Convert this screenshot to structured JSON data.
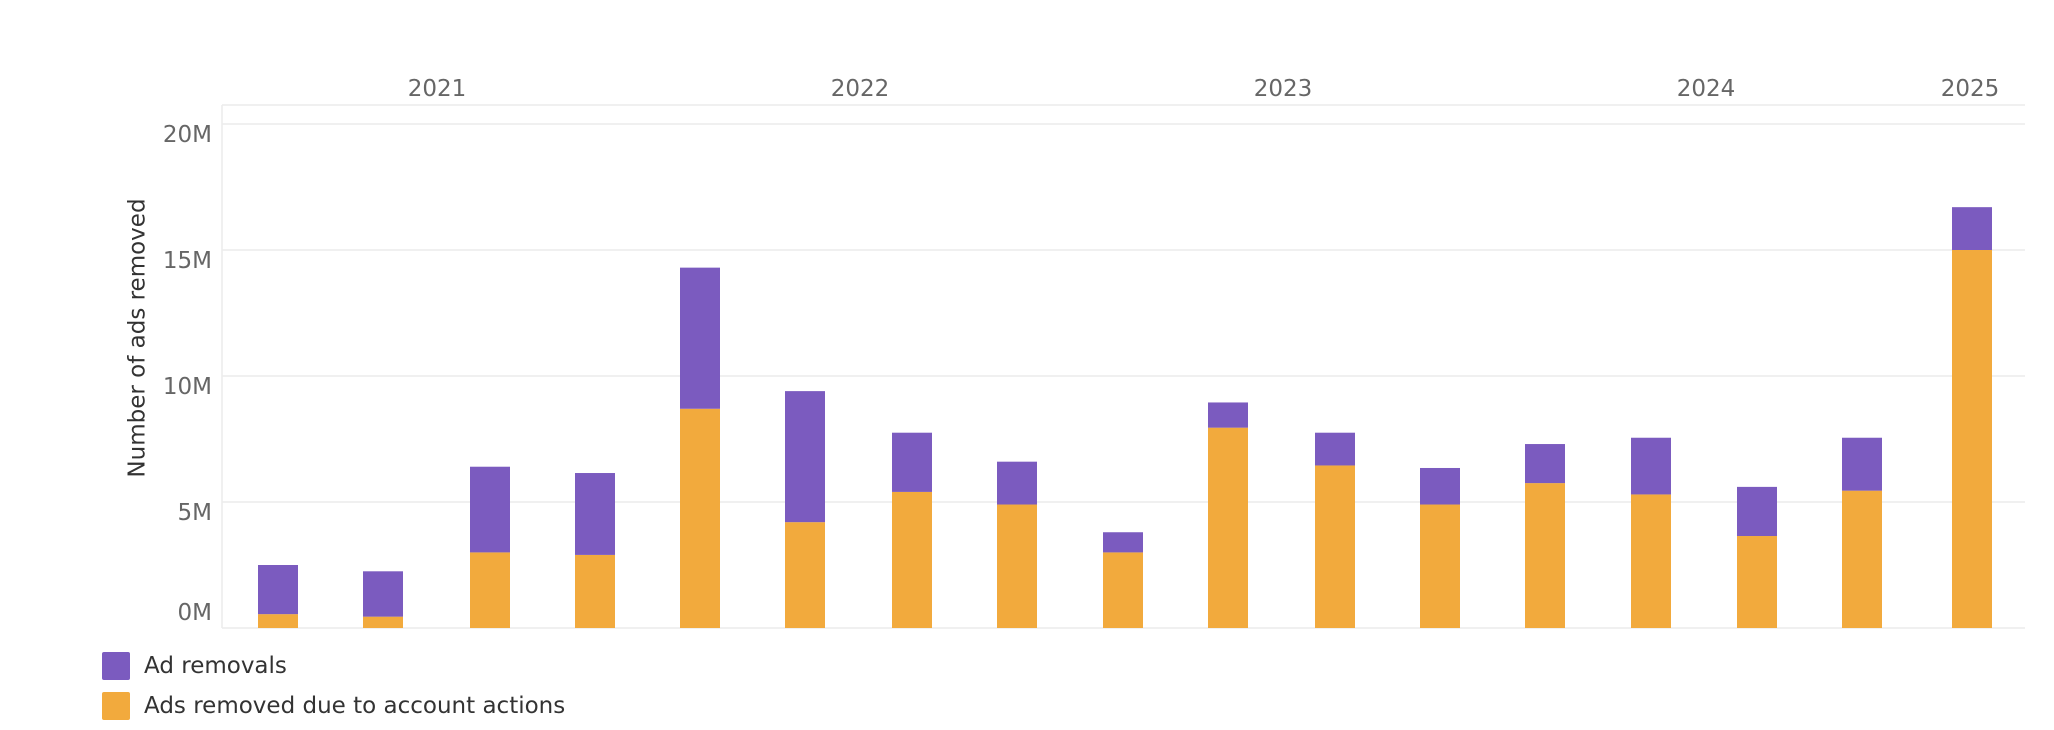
{
  "chart_data": {
    "type": "bar",
    "stacked": true,
    "title": "",
    "xlabel": "",
    "ylabel": "Number of ads removed",
    "ylim": [
      0,
      20000000
    ],
    "yticks": [
      {
        "value": 0,
        "label": "0M"
      },
      {
        "value": 5000000,
        "label": "5M"
      },
      {
        "value": 10000000,
        "label": "10M"
      },
      {
        "value": 15000000,
        "label": "15M"
      },
      {
        "value": 20000000,
        "label": "20M"
      }
    ],
    "year_groups": [
      {
        "label": "2021",
        "start": 0,
        "end": 3
      },
      {
        "label": "2022",
        "start": 4,
        "end": 7
      },
      {
        "label": "2023",
        "start": 8,
        "end": 11
      },
      {
        "label": "2024",
        "start": 12,
        "end": 15
      },
      {
        "label": "2025",
        "start": 16,
        "end": 16
      }
    ],
    "categories": [
      "",
      "",
      "",
      "",
      "",
      "",
      "",
      "",
      "",
      "",
      "",
      "",
      "",
      "",
      "",
      "",
      ""
    ],
    "series": [
      {
        "name": "Ads removed due to account actions",
        "color": "#F2AA3D",
        "values": [
          550000,
          450000,
          3000000,
          2900000,
          8700000,
          4200000,
          5400000,
          4900000,
          3000000,
          7950000,
          6450000,
          4900000,
          5750000,
          5300000,
          3650000,
          5450000,
          15000000
        ]
      },
      {
        "name": "Ad removals",
        "color": "#7B5BBF",
        "values": [
          1950000,
          1800000,
          3400000,
          3250000,
          5600000,
          5200000,
          2350000,
          1700000,
          800000,
          1000000,
          1300000,
          1450000,
          1550000,
          2250000,
          1950000,
          2100000,
          1700000
        ]
      }
    ],
    "grid": true,
    "legend_position": "bottom-left"
  },
  "legend": [
    {
      "label": "Ad removals",
      "color": "#7B5BBF"
    },
    {
      "label": "Ads removed due to account actions",
      "color": "#F2AA3D"
    }
  ]
}
